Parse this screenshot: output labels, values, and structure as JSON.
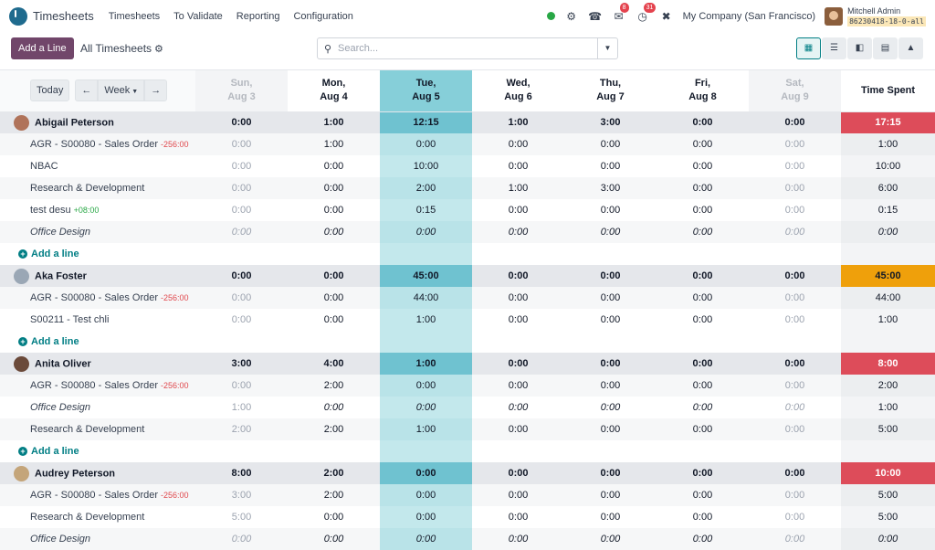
{
  "navbar": {
    "app_title": "Timesheets",
    "menu": [
      "Timesheets",
      "To Validate",
      "Reporting",
      "Configuration"
    ],
    "chat_badge": "8",
    "activity_badge": "31",
    "company": "My Company (San Francisco)",
    "user_name": "Mitchell Admin",
    "db_name": "86230418-18-0-all"
  },
  "control": {
    "add_line_label": "Add a Line",
    "view_title": "All Timesheets",
    "search_placeholder": "Search..."
  },
  "grid": {
    "today_label": "Today",
    "week_label": "Week",
    "total_header": "Time Spent",
    "days": [
      {
        "name": "Sun,",
        "date": "Aug 3"
      },
      {
        "name": "Mon,",
        "date": "Aug 4"
      },
      {
        "name": "Tue,",
        "date": "Aug 5"
      },
      {
        "name": "Wed,",
        "date": "Aug 6"
      },
      {
        "name": "Thu,",
        "date": "Aug 7"
      },
      {
        "name": "Fri,",
        "date": "Aug 8"
      },
      {
        "name": "Sat,",
        "date": "Aug 9"
      }
    ],
    "add_line_label": "Add a line",
    "employees": [
      {
        "name": "Abigail Peterson",
        "totals": [
          "0:00",
          "1:00",
          "12:15",
          "1:00",
          "3:00",
          "0:00",
          "0:00"
        ],
        "total": "17:15",
        "rows": [
          {
            "label": "AGR - S00080 - Sales Order",
            "tag": "-256:00",
            "values": [
              "0:00",
              "1:00",
              "0:00",
              "0:00",
              "0:00",
              "0:00",
              "0:00"
            ],
            "total": "1:00"
          },
          {
            "label": "NBAC",
            "tag": "",
            "values": [
              "0:00",
              "0:00",
              "10:00",
              "0:00",
              "0:00",
              "0:00",
              "0:00"
            ],
            "total": "10:00"
          },
          {
            "label": "Research & Development",
            "tag": "",
            "values": [
              "0:00",
              "0:00",
              "2:00",
              "1:00",
              "3:00",
              "0:00",
              "0:00"
            ],
            "total": "6:00"
          },
          {
            "label": "test desu",
            "tag": "+08:00",
            "values": [
              "0:00",
              "0:00",
              "0:15",
              "0:00",
              "0:00",
              "0:00",
              "0:00"
            ],
            "total": "0:15"
          },
          {
            "label": "Office Design",
            "tag": "",
            "values": [
              "0:00",
              "0:00",
              "0:00",
              "0:00",
              "0:00",
              "0:00",
              "0:00"
            ],
            "total": "0:00"
          }
        ]
      },
      {
        "name": "Aka Foster",
        "totals": [
          "0:00",
          "0:00",
          "45:00",
          "0:00",
          "0:00",
          "0:00",
          "0:00"
        ],
        "total": "45:00",
        "rows": [
          {
            "label": "AGR - S00080 - Sales Order",
            "tag": "-256:00",
            "values": [
              "0:00",
              "0:00",
              "44:00",
              "0:00",
              "0:00",
              "0:00",
              "0:00"
            ],
            "total": "44:00"
          },
          {
            "label": "S00211 - Test chli",
            "tag": "",
            "values": [
              "0:00",
              "0:00",
              "1:00",
              "0:00",
              "0:00",
              "0:00",
              "0:00"
            ],
            "total": "1:00"
          }
        ]
      },
      {
        "name": "Anita Oliver",
        "totals": [
          "3:00",
          "4:00",
          "1:00",
          "0:00",
          "0:00",
          "0:00",
          "0:00"
        ],
        "total": "8:00",
        "rows": [
          {
            "label": "AGR - S00080 - Sales Order",
            "tag": "-256:00",
            "values": [
              "0:00",
              "2:00",
              "0:00",
              "0:00",
              "0:00",
              "0:00",
              "0:00"
            ],
            "total": "2:00"
          },
          {
            "label": "Office Design",
            "tag": "",
            "values": [
              "1:00",
              "0:00",
              "0:00",
              "0:00",
              "0:00",
              "0:00",
              "0:00"
            ],
            "total": "1:00"
          },
          {
            "label": "Research & Development",
            "tag": "",
            "values": [
              "2:00",
              "2:00",
              "1:00",
              "0:00",
              "0:00",
              "0:00",
              "0:00"
            ],
            "total": "5:00"
          }
        ]
      },
      {
        "name": "Audrey Peterson",
        "totals": [
          "8:00",
          "2:00",
          "0:00",
          "0:00",
          "0:00",
          "0:00",
          "0:00"
        ],
        "total": "10:00",
        "rows": [
          {
            "label": "AGR - S00080 - Sales Order",
            "tag": "-256:00",
            "values": [
              "3:00",
              "2:00",
              "0:00",
              "0:00",
              "0:00",
              "0:00",
              "0:00"
            ],
            "total": "5:00"
          },
          {
            "label": "Research & Development",
            "tag": "",
            "values": [
              "5:00",
              "0:00",
              "0:00",
              "0:00",
              "0:00",
              "0:00",
              "0:00"
            ],
            "total": "5:00"
          },
          {
            "label": "Office Design",
            "tag": "",
            "values": [
              "0:00",
              "0:00",
              "0:00",
              "0:00",
              "0:00",
              "0:00",
              "0:00"
            ],
            "total": "0:00"
          }
        ]
      }
    ]
  }
}
